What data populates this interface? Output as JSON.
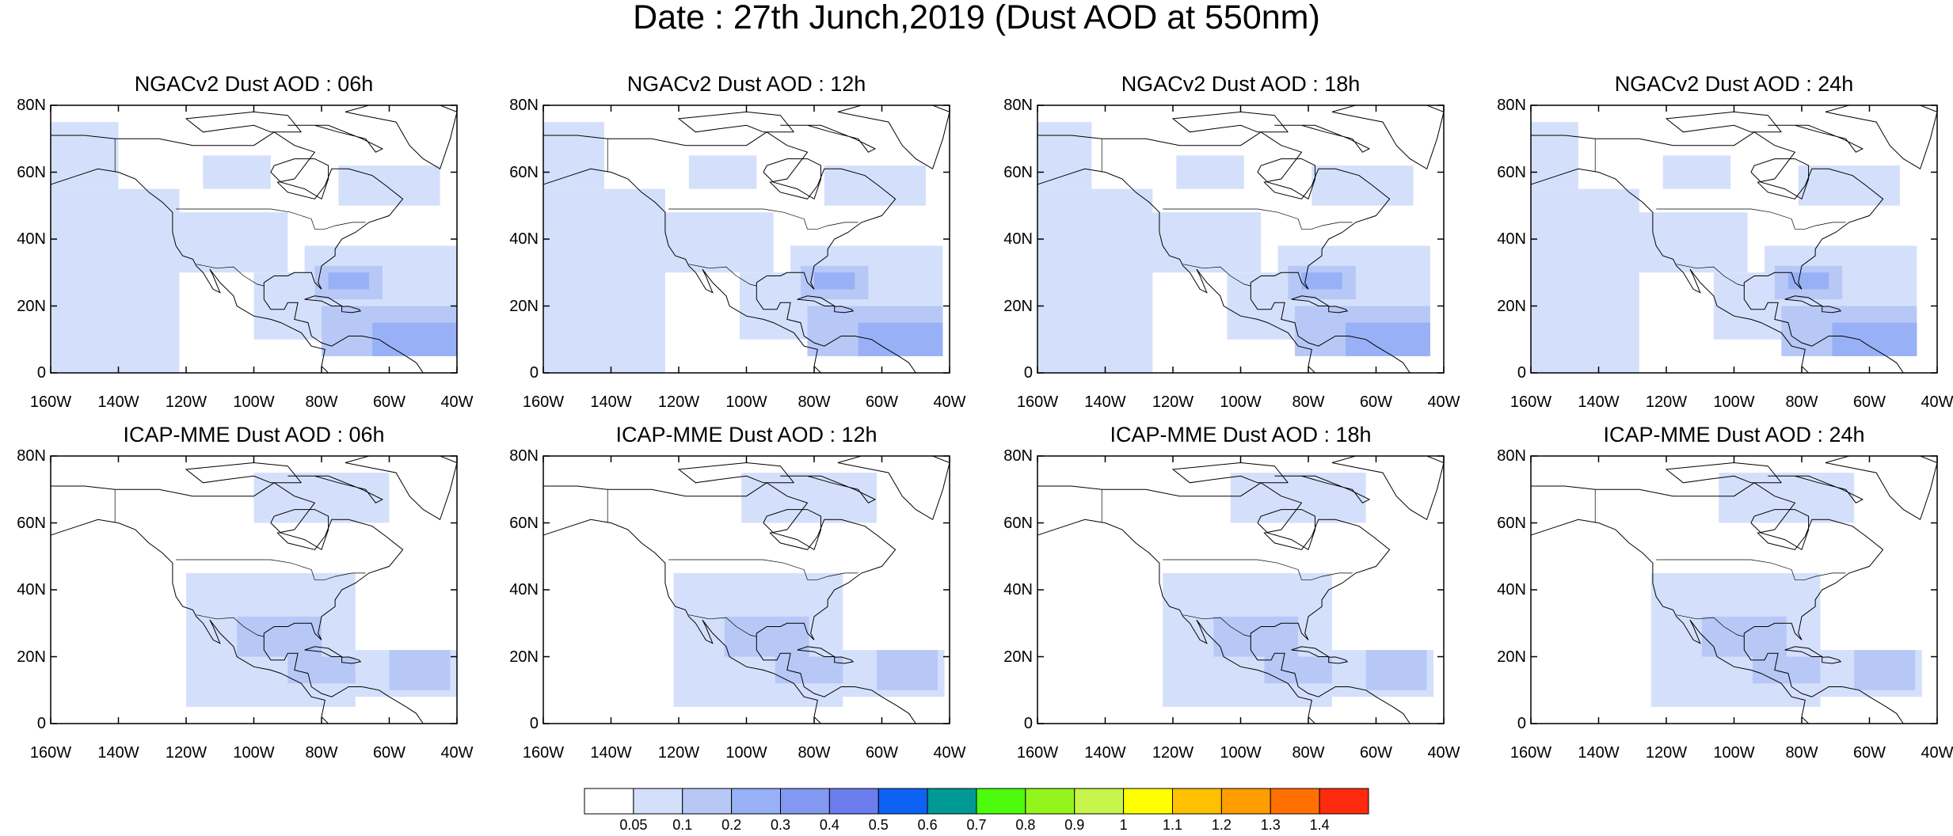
{
  "title": "Date : 27th Junch,2019 (Dust AOD at 550nm)",
  "map": {
    "lat_range": [
      0,
      80
    ],
    "lon_range": [
      -160,
      -40
    ],
    "lat_ticks": [
      "80N",
      "60N",
      "40N",
      "20N",
      "0"
    ],
    "lon_ticks": [
      "160W",
      "140W",
      "120W",
      "100W",
      "80W",
      "60W",
      "40W"
    ]
  },
  "panels": [
    {
      "title": "NGACv2 Dust AOD : 06h",
      "model": "NGACv2",
      "hour": "06h"
    },
    {
      "title": "NGACv2 Dust AOD : 12h",
      "model": "NGACv2",
      "hour": "12h"
    },
    {
      "title": "NGACv2 Dust AOD : 18h",
      "model": "NGACv2",
      "hour": "18h"
    },
    {
      "title": "NGACv2 Dust AOD : 24h",
      "model": "NGACv2",
      "hour": "24h"
    },
    {
      "title": "ICAP-MME Dust AOD : 06h",
      "model": "ICAP-MME",
      "hour": "06h"
    },
    {
      "title": "ICAP-MME Dust AOD : 12h",
      "model": "ICAP-MME",
      "hour": "12h"
    },
    {
      "title": "ICAP-MME Dust AOD : 18h",
      "model": "ICAP-MME",
      "hour": "18h"
    },
    {
      "title": "ICAP-MME Dust AOD : 24h",
      "model": "ICAP-MME",
      "hour": "24h"
    }
  ],
  "colorbar": {
    "labels": [
      "0.05",
      "0.1",
      "0.2",
      "0.3",
      "0.4",
      "0.5",
      "0.6",
      "0.7",
      "0.8",
      "0.9",
      "1",
      "1.1",
      "1.2",
      "1.3",
      "1.4"
    ],
    "colors": [
      "#ffffff",
      "#d4e0fb",
      "#b7c8f7",
      "#98b0f5",
      "#8398f1",
      "#6b7ded",
      "#0d62f4",
      "#009a95",
      "#4dfc0d",
      "#93f51b",
      "#c7f54a",
      "#ffff00",
      "#ffc000",
      "#ff9d00",
      "#ff7000",
      "#ff2a0d"
    ]
  },
  "dust_regions": {
    "NGACv2": [
      {
        "lon": [
          -160,
          -122
        ],
        "lat": [
          0,
          55
        ],
        "level": 1
      },
      {
        "lon": [
          -160,
          -140
        ],
        "lat": [
          55,
          75
        ],
        "level": 1
      },
      {
        "lon": [
          -125,
          -90
        ],
        "lat": [
          30,
          48
        ],
        "level": 1
      },
      {
        "lon": [
          -115,
          -95
        ],
        "lat": [
          55,
          65
        ],
        "level": 1
      },
      {
        "lon": [
          -100,
          -75
        ],
        "lat": [
          10,
          30
        ],
        "level": 1
      },
      {
        "lon": [
          -85,
          -40
        ],
        "lat": [
          20,
          38
        ],
        "level": 1
      },
      {
        "lon": [
          -75,
          -45
        ],
        "lat": [
          50,
          62
        ],
        "level": 1
      },
      {
        "lon": [
          -82,
          -62
        ],
        "lat": [
          22,
          32
        ],
        "level": 2
      },
      {
        "lon": [
          -78,
          -66
        ],
        "lat": [
          25,
          30
        ],
        "level": 3
      },
      {
        "lon": [
          -80,
          -40
        ],
        "lat": [
          5,
          20
        ],
        "level": 2
      },
      {
        "lon": [
          -65,
          -40
        ],
        "lat": [
          5,
          15
        ],
        "level": 3
      }
    ],
    "ICAP-MME": [
      {
        "lon": [
          -120,
          -70
        ],
        "lat": [
          5,
          45
        ],
        "level": 1
      },
      {
        "lon": [
          -75,
          -40
        ],
        "lat": [
          8,
          22
        ],
        "level": 1
      },
      {
        "lon": [
          -100,
          -60
        ],
        "lat": [
          60,
          75
        ],
        "level": 1
      },
      {
        "lon": [
          -105,
          -80
        ],
        "lat": [
          20,
          32
        ],
        "level": 2
      },
      {
        "lon": [
          -90,
          -70
        ],
        "lat": [
          12,
          20
        ],
        "level": 2
      },
      {
        "lon": [
          -60,
          -42
        ],
        "lat": [
          10,
          22
        ],
        "level": 2
      }
    ]
  }
}
